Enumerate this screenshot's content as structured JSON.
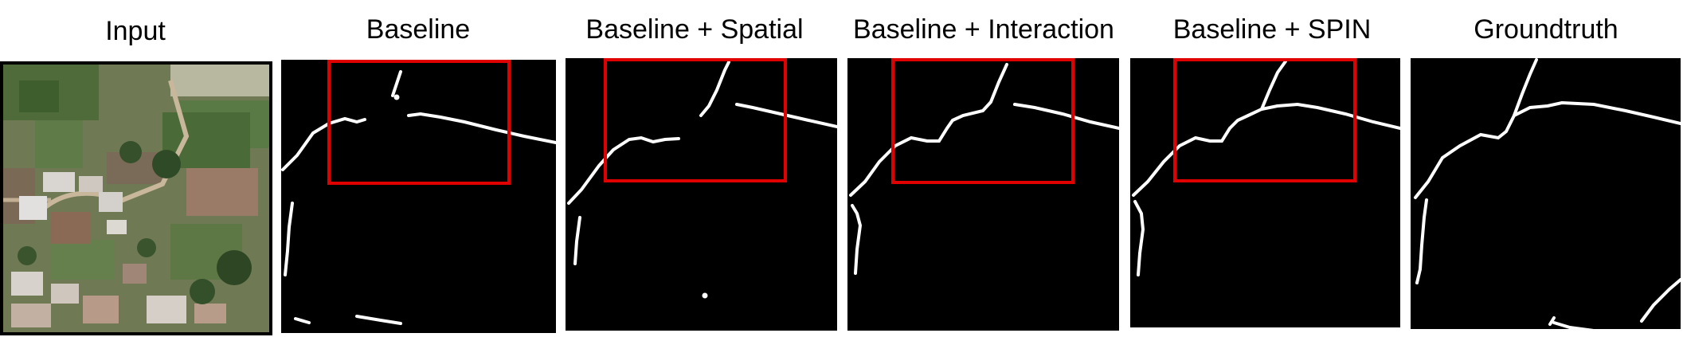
{
  "figure": {
    "panels": [
      {
        "title": "Input"
      },
      {
        "title": "Baseline"
      },
      {
        "title": "Baseline + Spatial"
      },
      {
        "title": "Baseline + Interaction"
      },
      {
        "title": "Baseline + SPIN"
      },
      {
        "title": "Groundtruth"
      }
    ],
    "colors": {
      "background": "#000000",
      "road": "#ffffff",
      "highlight_box": "#e00000"
    }
  }
}
